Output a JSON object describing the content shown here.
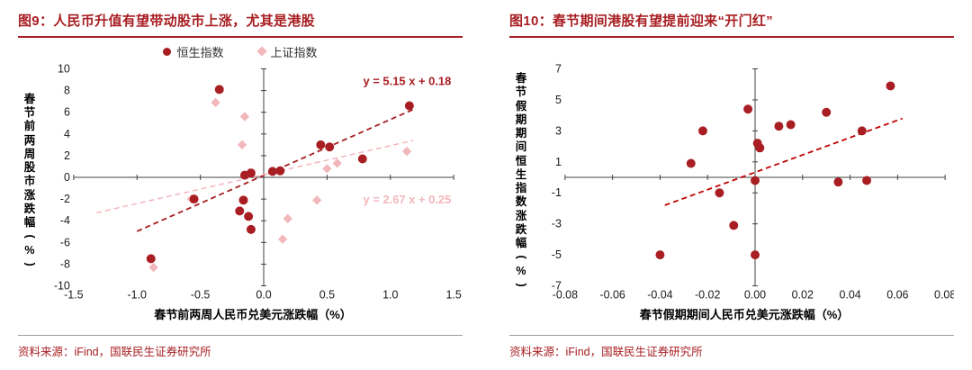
{
  "colors": {
    "dark_red": "#a81e22",
    "pink": "#f2b7bb",
    "axis": "#404040",
    "rule_gray": "#9d9d9d"
  },
  "panels": [
    {
      "source": "资料来源：iFind，国联民生证券研究所"
    },
    {
      "source": "资料来源：iFind，国联民生证券研究所"
    }
  ],
  "chart_data": [
    {
      "type": "scatter",
      "title": "图9：人民币升值有望带动股市上涨，尤其是港股",
      "xlabel": "春节前两周人民币兑美元涨跌幅（%）",
      "ylabel": "春节前两周股市涨跌幅(%)",
      "xlim": [
        -1.5,
        1.5
      ],
      "ylim": [
        -10,
        10
      ],
      "xticks": [
        -1.5,
        -1.0,
        -0.5,
        0.0,
        0.5,
        1.0,
        1.5
      ],
      "xtick_labels": [
        "-1.5",
        "-1.0",
        "-0.5",
        "0.0",
        "0.5",
        "1.0",
        "1.5"
      ],
      "yticks": [
        10,
        8,
        6,
        4,
        2,
        0,
        -2,
        -4,
        -6,
        -8,
        -10
      ],
      "ytick_labels": [
        "10",
        "8",
        "6",
        "4",
        "2",
        "0",
        "-2",
        "-4",
        "-6",
        "-8",
        "-10"
      ],
      "grid": false,
      "legend_position": "top-center",
      "legend": [
        {
          "name": "恒生指数",
          "marker": "circle",
          "color": "#a81e22"
        },
        {
          "name": "上证指数",
          "marker": "diamond",
          "color": "#f2b7bb"
        }
      ],
      "series": [
        {
          "name": "上证指数",
          "marker": "diamond",
          "color": "#f2b7bb",
          "points": [
            [
              -0.38,
              6.9
            ],
            [
              -0.15,
              5.6
            ],
            [
              -0.17,
              3.0
            ],
            [
              1.13,
              2.4
            ],
            [
              0.58,
              1.3
            ],
            [
              0.5,
              0.8
            ],
            [
              -0.11,
              0.45
            ],
            [
              -0.57,
              -2.0
            ],
            [
              0.42,
              -2.1
            ],
            [
              0.19,
              -3.8
            ],
            [
              0.15,
              -5.7
            ],
            [
              -0.87,
              -8.3
            ]
          ]
        },
        {
          "name": "恒生指数",
          "marker": "circle",
          "color": "#a81e22",
          "points": [
            [
              -0.35,
              8.1
            ],
            [
              1.15,
              6.6
            ],
            [
              0.45,
              3.0
            ],
            [
              0.52,
              2.8
            ],
            [
              0.78,
              1.7
            ],
            [
              0.13,
              0.6
            ],
            [
              0.07,
              0.55
            ],
            [
              -0.1,
              0.4
            ],
            [
              -0.15,
              0.2
            ],
            [
              -0.55,
              -2.0
            ],
            [
              -0.16,
              -2.1
            ],
            [
              -0.19,
              -3.1
            ],
            [
              -0.12,
              -3.6
            ],
            [
              -0.1,
              -4.8
            ],
            [
              -0.89,
              -7.5
            ]
          ]
        }
      ],
      "trendlines": [
        {
          "eq": "y = 5.15 x + 0.18",
          "color": "#a81e22",
          "width": 1.8,
          "x1": -1.0,
          "y1": -4.97,
          "x2": 1.18,
          "y2": 6.26,
          "label_xy": [
            1.48,
            8.5
          ],
          "anchor": "end"
        },
        {
          "eq": "y = 2.67 x + 0.25",
          "color": "#f2b7bb",
          "width": 1.5,
          "x1": -1.32,
          "y1": -3.27,
          "x2": 1.18,
          "y2": 3.4,
          "label_xy": [
            1.48,
            -2.4
          ],
          "anchor": "end"
        }
      ]
    },
    {
      "type": "scatter",
      "title": "图10：春节期间港股有望提前迎来“开门红”",
      "xlabel": "春节假期期间人民币兑美元涨跌幅（%）",
      "ylabel": "春节假期期间恒生指数涨跌幅(%)",
      "xlim": [
        -0.08,
        0.08
      ],
      "ylim": [
        -7,
        7
      ],
      "xticks": [
        -0.08,
        -0.06,
        -0.04,
        -0.02,
        0.0,
        0.02,
        0.04,
        0.06,
        0.08
      ],
      "xtick_labels": [
        "-0.08",
        "-0.06",
        "-0.04",
        "-0.02",
        "0.00",
        "0.02",
        "0.04",
        "0.06",
        "0.08"
      ],
      "yticks": [
        7,
        5,
        3,
        1,
        -1,
        -3,
        -5,
        -7
      ],
      "ytick_labels": [
        "7",
        "5",
        "3",
        "1",
        "-1",
        "-3",
        "-5",
        "-7"
      ],
      "grid": false,
      "legend": [],
      "series": [
        {
          "name": "恒生指数",
          "marker": "circle",
          "color": "#a81e22",
          "points": [
            [
              -0.04,
              -5.0
            ],
            [
              -0.022,
              3.0
            ],
            [
              -0.027,
              0.9
            ],
            [
              -0.015,
              -1.0
            ],
            [
              -0.009,
              -3.1
            ],
            [
              -0.003,
              4.4
            ],
            [
              0.001,
              2.2
            ],
            [
              0.002,
              1.9
            ],
            [
              0.0,
              -0.2
            ],
            [
              0.0,
              -5.0
            ],
            [
              0.01,
              3.3
            ],
            [
              0.015,
              3.4
            ],
            [
              0.03,
              4.2
            ],
            [
              0.035,
              -0.3
            ],
            [
              0.045,
              3.0
            ],
            [
              0.047,
              -0.2
            ],
            [
              0.057,
              5.9
            ]
          ]
        }
      ],
      "trendlines": [
        {
          "eq": "",
          "color": "#c00000",
          "width": 1.8,
          "x1": -0.038,
          "y1": -1.8,
          "x2": 0.062,
          "y2": 3.8,
          "label_xy": [
            0,
            0
          ],
          "anchor": "start"
        }
      ]
    }
  ]
}
